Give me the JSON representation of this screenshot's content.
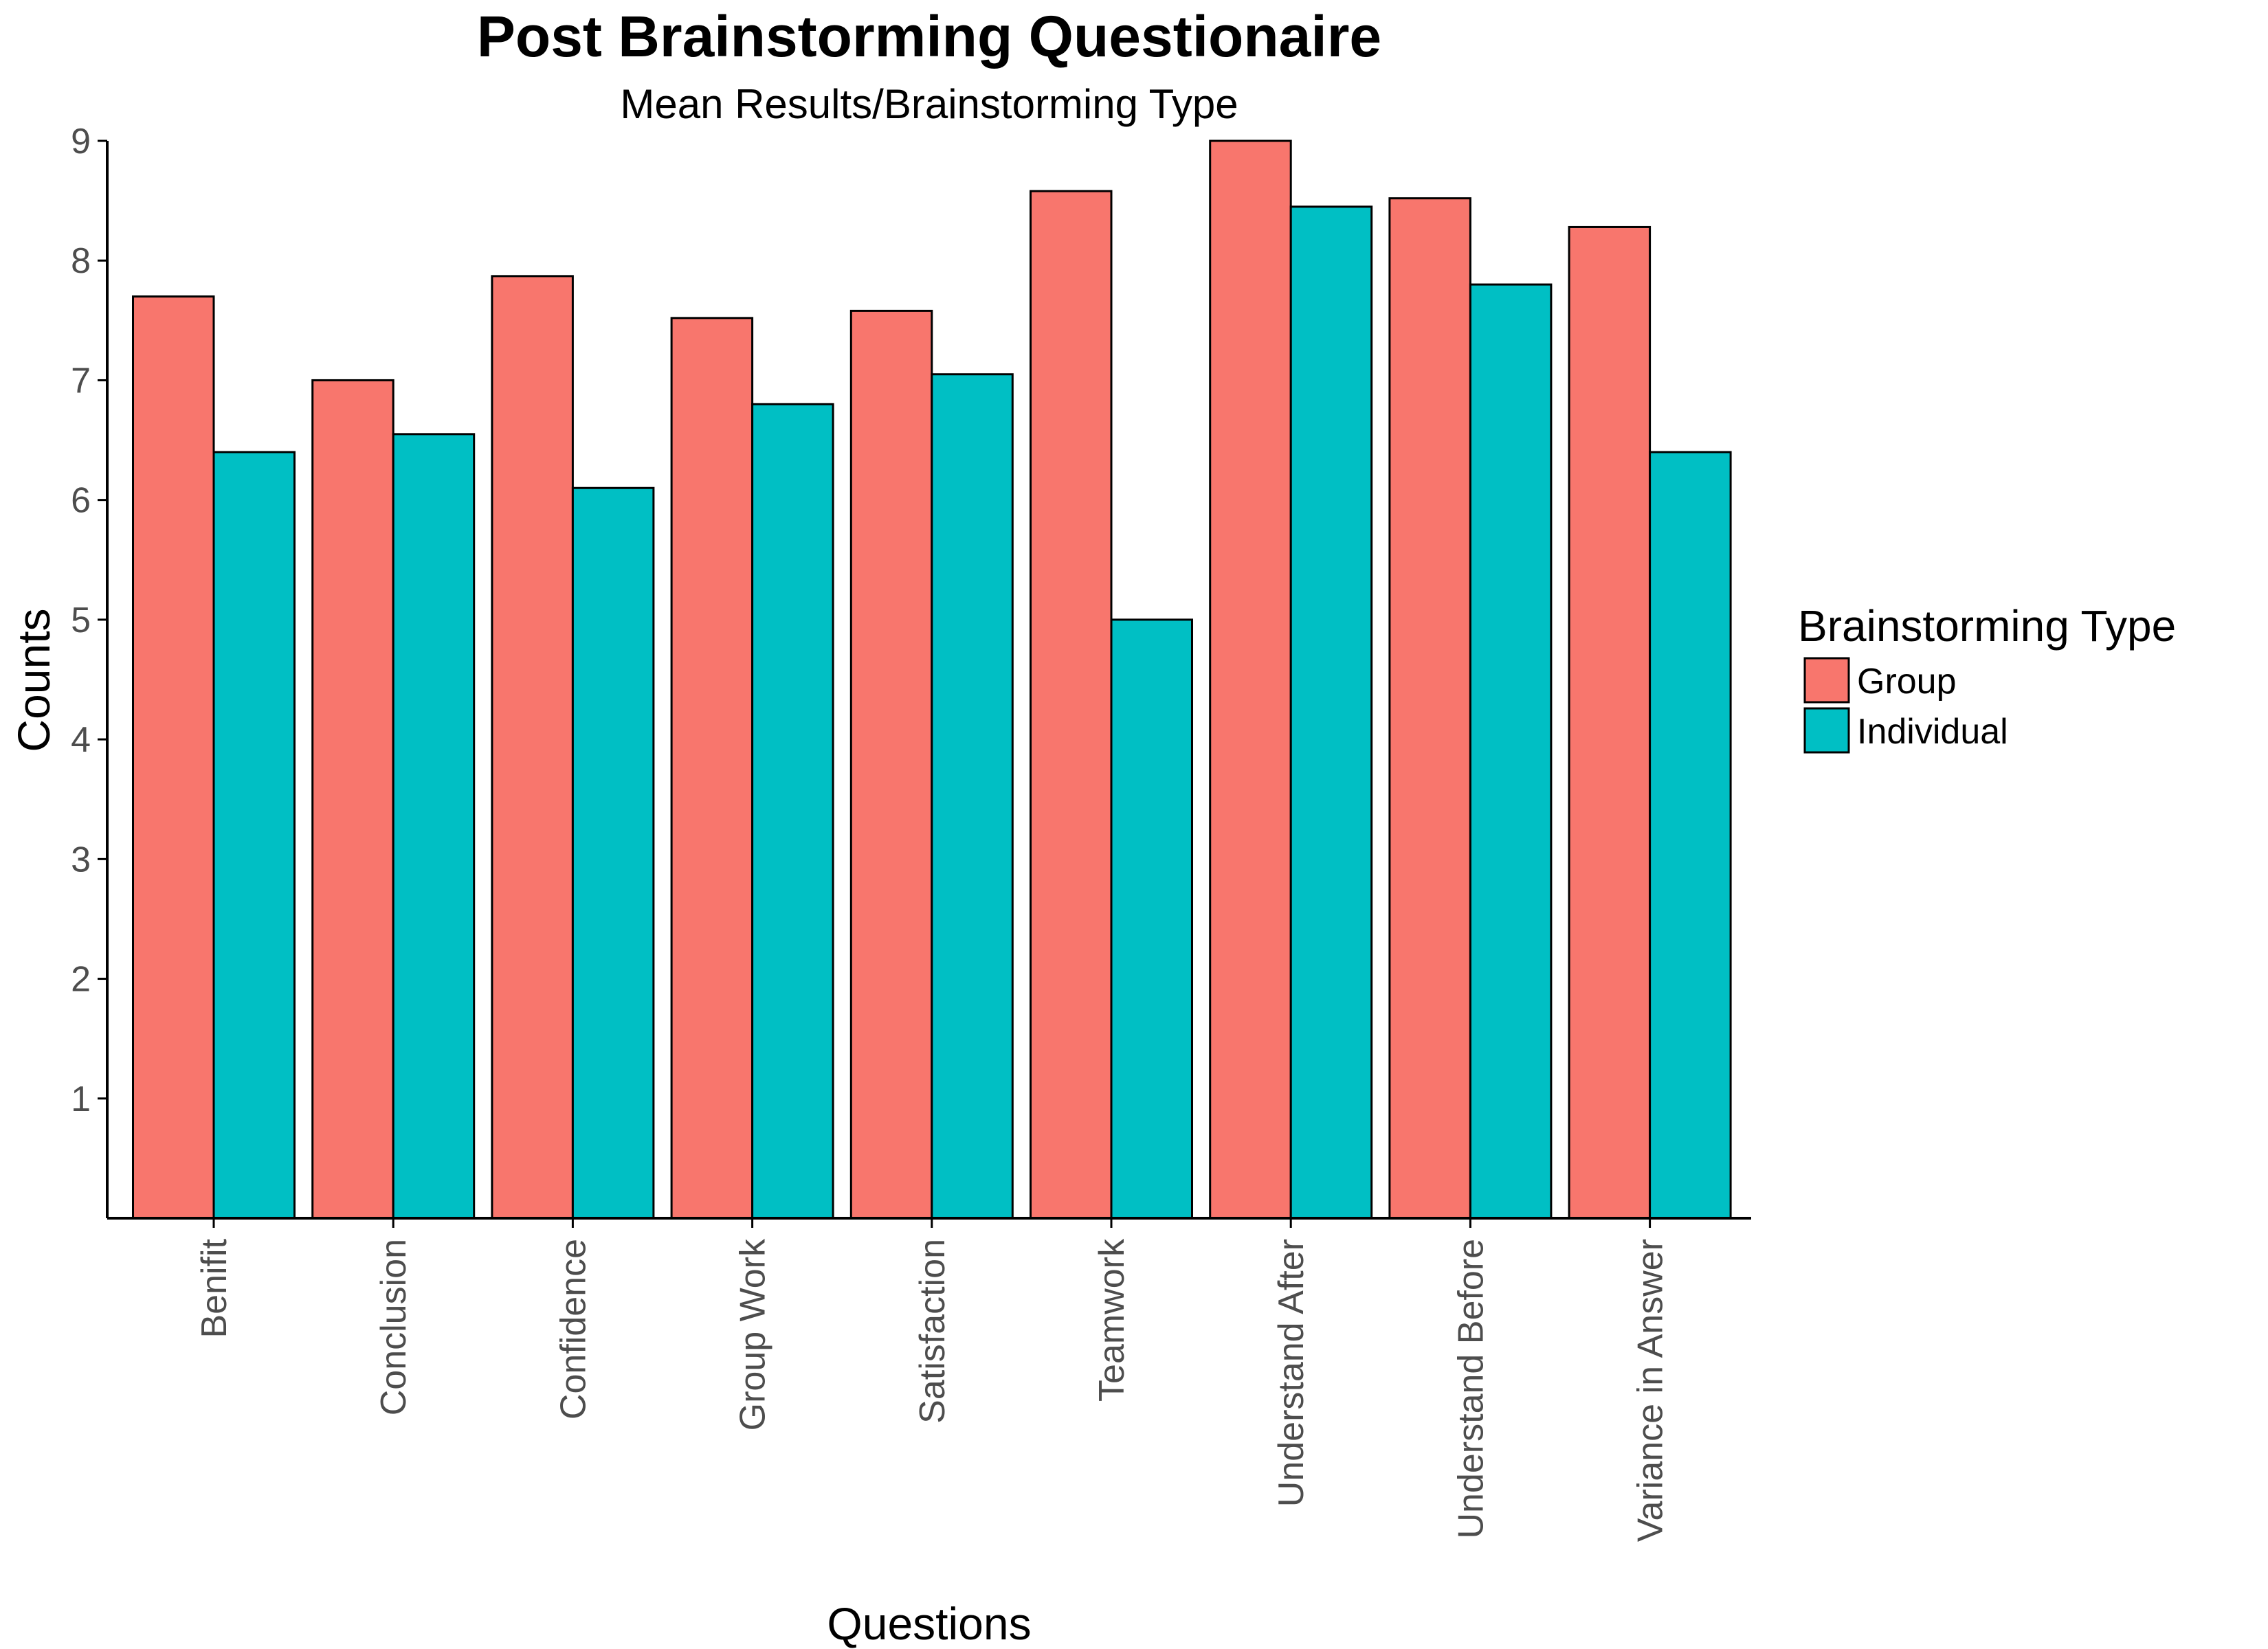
{
  "chart_data": {
    "type": "bar",
    "title": "Post Brainstorming Questionaire",
    "subtitle": "Mean Results/Brainstorming Type",
    "xlabel": "Questions",
    "ylabel": "Counts",
    "ylim": [
      0,
      9
    ],
    "yticks": [
      1,
      2,
      3,
      4,
      5,
      6,
      7,
      8,
      9
    ],
    "categories": [
      "Benifit",
      "Conclusion",
      "Confidence",
      "Group Work",
      "Satisfaction",
      "Teamwork",
      "Understand After",
      "Understand Before",
      "Variance in Answer"
    ],
    "series": [
      {
        "name": "Group",
        "color": "#F8766D",
        "values": [
          7.7,
          7.0,
          7.87,
          7.52,
          7.58,
          8.58,
          9.0,
          8.52,
          8.28
        ]
      },
      {
        "name": "Individual",
        "color": "#00BFC4",
        "values": [
          6.4,
          6.55,
          6.1,
          6.8,
          7.05,
          5.0,
          8.45,
          7.8,
          6.4
        ]
      }
    ],
    "grid": false,
    "legend": {
      "title": "Brainstorming Type",
      "position": "right"
    }
  }
}
